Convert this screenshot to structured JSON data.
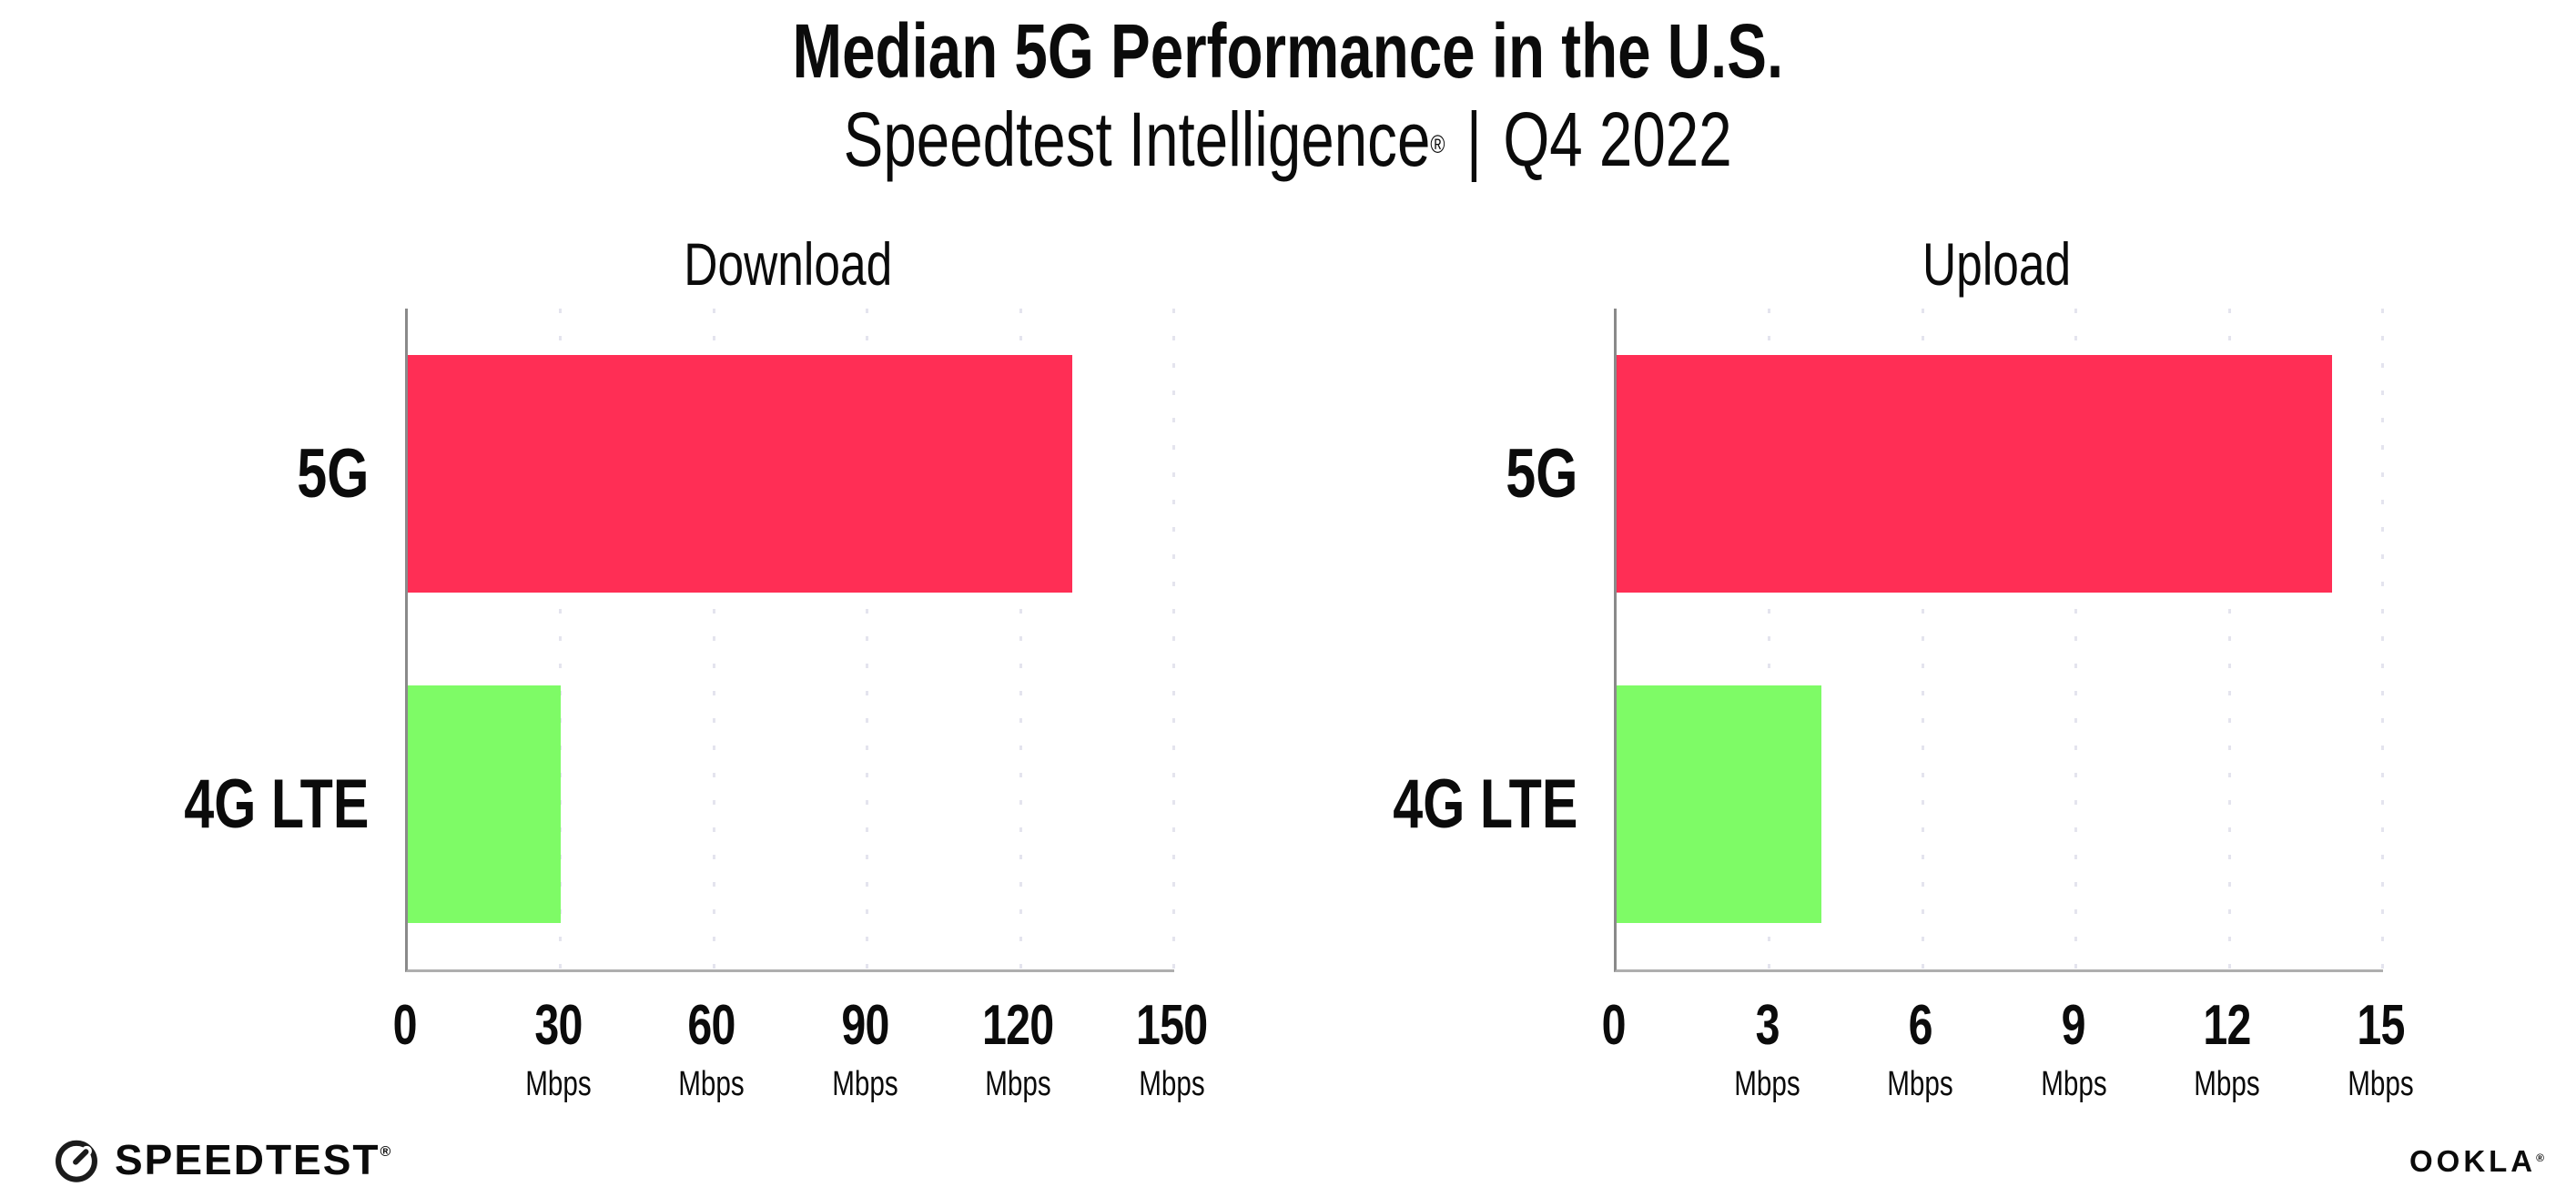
{
  "header": {
    "title": "Median 5G Performance in the U.S.",
    "subtitle": {
      "brand": "Speedtest Intelligence",
      "reg": "®",
      "sep": "|",
      "period": "Q4 2022"
    }
  },
  "chart_data": [
    {
      "type": "bar",
      "orientation": "horizontal",
      "title": "Download",
      "categories": [
        "5G",
        "4G LTE"
      ],
      "values": [
        130,
        30
      ],
      "unit": "Mbps",
      "xlim": [
        0,
        150
      ],
      "xticks": [
        0,
        30,
        60,
        90,
        120,
        150
      ],
      "grid": "vertical-dotted",
      "legend": "none"
    },
    {
      "type": "bar",
      "orientation": "horizontal",
      "title": "Upload",
      "categories": [
        "5G",
        "4G LTE"
      ],
      "values": [
        14,
        4
      ],
      "unit": "Mbps",
      "xlim": [
        0,
        15
      ],
      "xticks": [
        0,
        3,
        6,
        9,
        12,
        15
      ],
      "grid": "vertical-dotted",
      "legend": "none"
    }
  ],
  "colors": {
    "bar_5g": "#FF2E55",
    "bar_4g_lte": "#7EFB66",
    "gridline": "#E4E4EE",
    "axis_left": "#8A8A8A",
    "axis_bottom": "#AEAEAE",
    "text": "#0B0B0B"
  },
  "footer": {
    "speedtest": {
      "icon": "speedtest-gauge-icon",
      "label": "SPEEDTEST",
      "mark": "®"
    },
    "ookla": {
      "label": "OOKLA",
      "mark": "®"
    }
  }
}
